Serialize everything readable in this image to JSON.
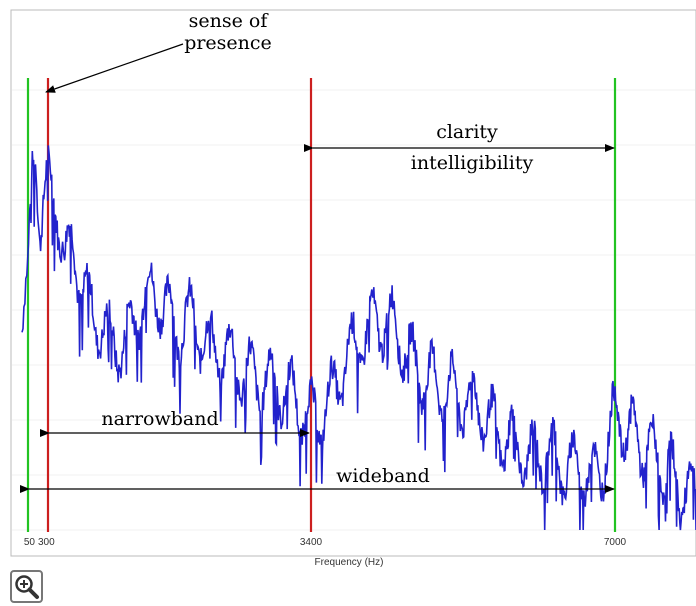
{
  "chart_data": {
    "type": "line",
    "xlabel": "Frequency (Hz)",
    "xticks": [
      {
        "value": 50,
        "label": "50"
      },
      {
        "value": 300,
        "label": "300"
      },
      {
        "value": 3400,
        "label": "3400"
      },
      {
        "value": 7000,
        "label": "7000"
      }
    ],
    "xlim": [
      0,
      8000
    ],
    "series": [
      {
        "color": "#2222cc",
        "x": [
          0,
          50,
          100,
          150,
          200,
          300,
          400,
          500,
          600,
          700,
          800,
          900,
          1000,
          1200,
          1400,
          1600,
          1800,
          2000,
          2200,
          2400,
          2600,
          2800,
          3000,
          3200,
          3400,
          3600,
          3800,
          4000,
          4200,
          4400,
          4600,
          4800,
          5000,
          5200,
          5400,
          5600,
          5800,
          6000,
          6200,
          6400,
          6600,
          6800,
          7000,
          7200,
          7400,
          7600,
          7800,
          8000
        ],
        "y": [
          0.45,
          0.55,
          0.8,
          0.88,
          0.7,
          0.78,
          0.76,
          0.6,
          0.66,
          0.55,
          0.5,
          0.48,
          0.44,
          0.42,
          0.52,
          0.54,
          0.46,
          0.48,
          0.42,
          0.4,
          0.36,
          0.34,
          0.33,
          0.3,
          0.25,
          0.28,
          0.38,
          0.44,
          0.48,
          0.46,
          0.38,
          0.34,
          0.32,
          0.3,
          0.28,
          0.22,
          0.2,
          0.16,
          0.18,
          0.14,
          0.14,
          0.12,
          0.26,
          0.22,
          0.18,
          0.15,
          0.1,
          0.08
        ]
      }
    ],
    "markers": [
      {
        "x": 50,
        "color": "#22c322"
      },
      {
        "x": 300,
        "color": "#cc1f1f"
      },
      {
        "x": 3400,
        "color": "#cc1f1f"
      },
      {
        "x": 7000,
        "color": "#22c322"
      }
    ],
    "annotations": {
      "sense_line1": "sense of",
      "sense_line2": "presence",
      "clarity": "clarity",
      "intelligibility": "intelligibility",
      "narrowband": "narrowband",
      "wideband": "wideband"
    }
  },
  "toolbar": {
    "zoom_icon": "zoom-in-icon"
  }
}
